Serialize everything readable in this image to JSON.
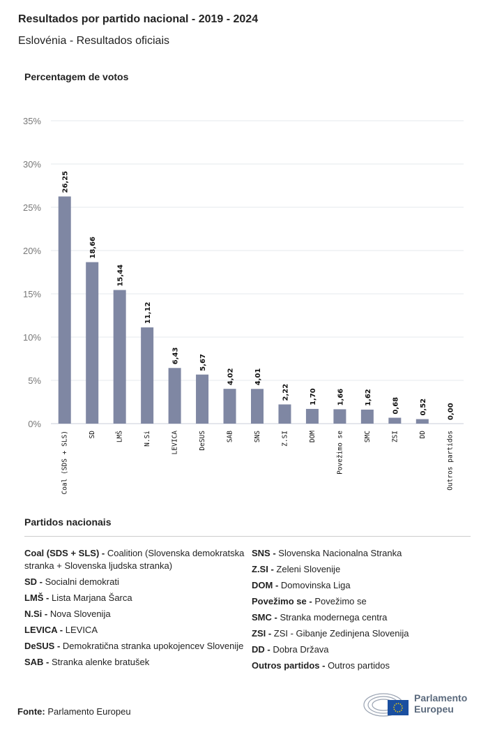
{
  "header": {
    "title": "Resultados por partido nacional - 2019 - 2024",
    "subtitle": "Eslovénia - Resultados oficiais"
  },
  "chart_data": {
    "type": "bar",
    "ylabel": "Percentagem de votos",
    "categories": [
      "Coal (SDS + SLS)",
      "SD",
      "LMŠ",
      "N.Si",
      "LEVICA",
      "DeSUS",
      "SAB",
      "SNS",
      "Z.SI",
      "DOM",
      "Povežimo se",
      "SMC",
      "ZSI",
      "DD",
      "Outros partidos"
    ],
    "values": [
      26.25,
      18.66,
      15.44,
      11.12,
      6.43,
      5.67,
      4.02,
      4.01,
      2.22,
      1.7,
      1.66,
      1.62,
      0.68,
      0.52,
      0.0
    ],
    "value_labels": [
      "26,25",
      "18,66",
      "15,44",
      "11,12",
      "6,43",
      "5,67",
      "4,02",
      "4,01",
      "2,22",
      "1,70",
      "1,66",
      "1,62",
      "0,68",
      "0,52",
      "0,00"
    ],
    "yticks": [
      "0%",
      "5%",
      "10%",
      "15%",
      "20%",
      "25%",
      "30%",
      "35%"
    ],
    "ylim": [
      0,
      35
    ],
    "grid": true,
    "bar_color": "#7f87a3"
  },
  "legend": {
    "title": "Partidos nacionais",
    "left": [
      {
        "abbr": "Coal (SDS + SLS) -",
        "name": "Coalition (Slovenska demokratska stranka + Slovenska ljudska stranka)"
      },
      {
        "abbr": "SD -",
        "name": "Socialni demokrati"
      },
      {
        "abbr": "LMŠ -",
        "name": "Lista Marjana Šarca"
      },
      {
        "abbr": "N.Si -",
        "name": "Nova Slovenija"
      },
      {
        "abbr": "LEVICA -",
        "name": "LEVICA"
      },
      {
        "abbr": "DeSUS -",
        "name": "Demokratična stranka upokojencev Slovenije"
      },
      {
        "abbr": "SAB -",
        "name": "Stranka alenke bratušek"
      }
    ],
    "right": [
      {
        "abbr": "SNS -",
        "name": "Slovenska Nacionalna Stranka"
      },
      {
        "abbr": "Z.SI -",
        "name": "Zeleni Slovenije"
      },
      {
        "abbr": "DOM -",
        "name": "Domovinska Liga"
      },
      {
        "abbr": "Povežimo se -",
        "name": "Povežimo se"
      },
      {
        "abbr": "SMC -",
        "name": "Stranka modernega centra"
      },
      {
        "abbr": "ZSI -",
        "name": "ZSI - Gibanje Zedinjena Slovenija"
      },
      {
        "abbr": "DD -",
        "name": "Dobra Država"
      },
      {
        "abbr": "Outros partidos -",
        "name": "Outros partidos"
      }
    ]
  },
  "footer": {
    "source_label": "Fonte:",
    "source": "Parlamento Europeu",
    "logo_line1": "Parlamento",
    "logo_line2": "Europeu"
  }
}
